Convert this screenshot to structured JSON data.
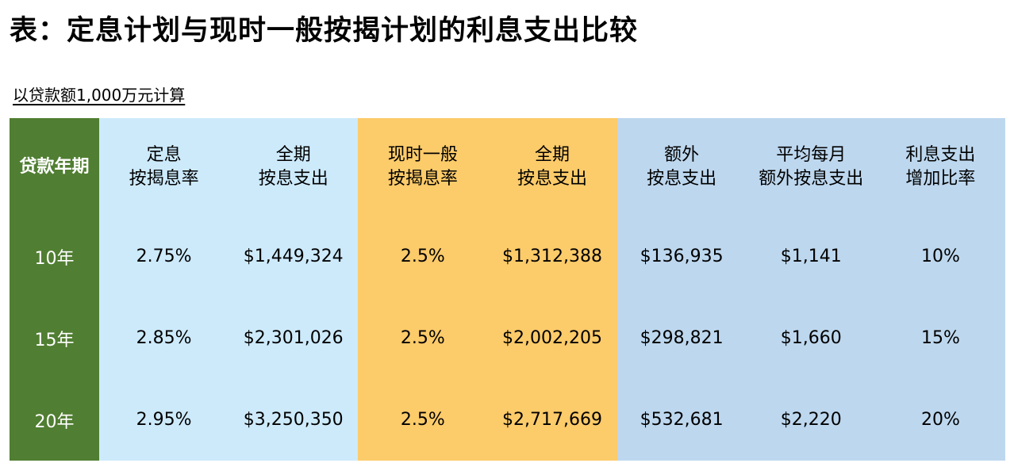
{
  "title": "表：定息计划与现时一般按揭计划的利息支出比较",
  "subtitle": "以贷款额1,000万元计算",
  "colors": {
    "term_column": "#507e32",
    "fixed_plan": "#cdeafb",
    "current_plan": "#fccb6a",
    "difference": "#bdd7ee"
  },
  "table": {
    "headers": [
      [
        "贷款年期"
      ],
      [
        "定息",
        "按揭息率"
      ],
      [
        "全期",
        "按息支出"
      ],
      [
        "现时一般",
        "按揭息率"
      ],
      [
        "全期",
        "按息支出"
      ],
      [
        "额外",
        "按息支出"
      ],
      [
        "平均每月",
        "额外按息支出"
      ],
      [
        "利息支出",
        "增加比率"
      ]
    ],
    "rows": [
      [
        "10年",
        "2.75%",
        "$1,449,324",
        "2.5%",
        "$1,312,388",
        "$136,935",
        "$1,141",
        "10%"
      ],
      [
        "15年",
        "2.85%",
        "$2,301,026",
        "2.5%",
        "$2,002,205",
        "$298,821",
        "$1,660",
        "15%"
      ],
      [
        "20年",
        "2.95%",
        "$3,250,350",
        "2.5%",
        "$2,717,669",
        "$532,681",
        "$2,220",
        "20%"
      ]
    ]
  }
}
